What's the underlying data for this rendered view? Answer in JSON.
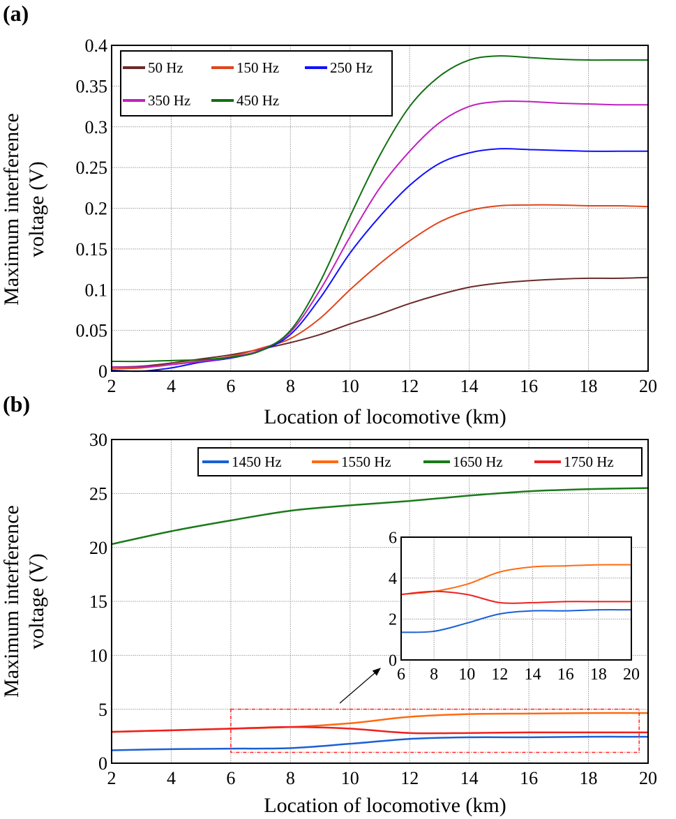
{
  "chart_data": [
    {
      "panel_label": "(a)",
      "type": "line",
      "xlabel": "Location of locomotive (km)",
      "ylabel": [
        "Maximum interference",
        "voltage (V)"
      ],
      "xlim": [
        2,
        20
      ],
      "ylim": [
        0,
        0.4
      ],
      "xticks": [
        "2",
        "4",
        "6",
        "8",
        "10",
        "12",
        "14",
        "16",
        "18",
        "20"
      ],
      "yticks": [
        "0",
        "0.05",
        "0.1",
        "0.15",
        "0.2",
        "0.25",
        "0.3",
        "0.35",
        "0.4"
      ],
      "grid": true,
      "legend_position": "top-left",
      "x": [
        2,
        3,
        4,
        5,
        6,
        7,
        8,
        9,
        10,
        11,
        12,
        13,
        14,
        15,
        16,
        17,
        18,
        19,
        20
      ],
      "series": [
        {
          "name": "50 Hz",
          "color": "#6b2a2a",
          "values": [
            0.005,
            0.006,
            0.01,
            0.015,
            0.02,
            0.027,
            0.035,
            0.045,
            0.058,
            0.07,
            0.083,
            0.094,
            0.103,
            0.108,
            0.111,
            0.113,
            0.114,
            0.114,
            0.115
          ]
        },
        {
          "name": "150 Hz",
          "color": "#e0441a",
          "values": [
            0.003,
            0.004,
            0.008,
            0.013,
            0.018,
            0.028,
            0.04,
            0.065,
            0.1,
            0.132,
            0.16,
            0.183,
            0.197,
            0.203,
            0.204,
            0.204,
            0.203,
            0.203,
            0.202
          ]
        },
        {
          "name": "250 Hz",
          "color": "#1010ff",
          "values": [
            0.001,
            0.0,
            0.004,
            0.011,
            0.016,
            0.025,
            0.045,
            0.09,
            0.145,
            0.19,
            0.228,
            0.255,
            0.268,
            0.273,
            0.272,
            0.271,
            0.27,
            0.27,
            0.27
          ]
        },
        {
          "name": "350 Hz",
          "color": "#c020c0",
          "values": [
            0.005,
            0.005,
            0.008,
            0.012,
            0.017,
            0.026,
            0.048,
            0.1,
            0.165,
            0.225,
            0.27,
            0.305,
            0.325,
            0.331,
            0.331,
            0.329,
            0.328,
            0.327,
            0.327
          ]
        },
        {
          "name": "450 Hz",
          "color": "#107010",
          "values": [
            0.012,
            0.012,
            0.013,
            0.014,
            0.017,
            0.025,
            0.05,
            0.11,
            0.19,
            0.265,
            0.325,
            0.362,
            0.382,
            0.387,
            0.385,
            0.383,
            0.382,
            0.382,
            0.382
          ]
        }
      ]
    },
    {
      "panel_label": "(b)",
      "type": "line",
      "xlabel": "Location of locomotive (km)",
      "ylabel": [
        "Maximum interference",
        "voltage (V)"
      ],
      "xlim": [
        2,
        20
      ],
      "ylim": [
        0,
        30
      ],
      "xticks": [
        "2",
        "4",
        "6",
        "8",
        "10",
        "12",
        "14",
        "16",
        "18",
        "20"
      ],
      "yticks": [
        "0",
        "5",
        "10",
        "15",
        "20",
        "25",
        "30"
      ],
      "grid": true,
      "legend_position": "top-right",
      "x": [
        2,
        4,
        6,
        8,
        10,
        12,
        14,
        16,
        18,
        20
      ],
      "series": [
        {
          "name": "1450 Hz",
          "color": "#1a5fd6",
          "values": [
            1.2,
            1.3,
            1.35,
            1.4,
            1.8,
            2.25,
            2.4,
            2.4,
            2.45,
            2.45
          ]
        },
        {
          "name": "1550 Hz",
          "color": "#ff6a10",
          "values": [
            2.9,
            3.05,
            3.2,
            3.35,
            3.7,
            4.3,
            4.55,
            4.6,
            4.65,
            4.65
          ]
        },
        {
          "name": "1650 Hz",
          "color": "#1a7a1a",
          "values": [
            20.3,
            21.5,
            22.5,
            23.4,
            23.9,
            24.3,
            24.8,
            25.2,
            25.4,
            25.5
          ]
        },
        {
          "name": "1750 Hz",
          "color": "#ee2020",
          "values": [
            2.9,
            3.05,
            3.2,
            3.35,
            3.2,
            2.8,
            2.8,
            2.85,
            2.85,
            2.85
          ]
        }
      ],
      "zoom_region": {
        "xlim": [
          6,
          19.7
        ],
        "ylim": [
          1,
          5
        ]
      },
      "inset": {
        "xlim": [
          6,
          20
        ],
        "ylim": [
          0,
          6
        ],
        "xticks": [
          "6",
          "8",
          "10",
          "12",
          "14",
          "16",
          "18",
          "20"
        ],
        "yticks": [
          "0",
          "2",
          "4",
          "6"
        ]
      }
    }
  ]
}
